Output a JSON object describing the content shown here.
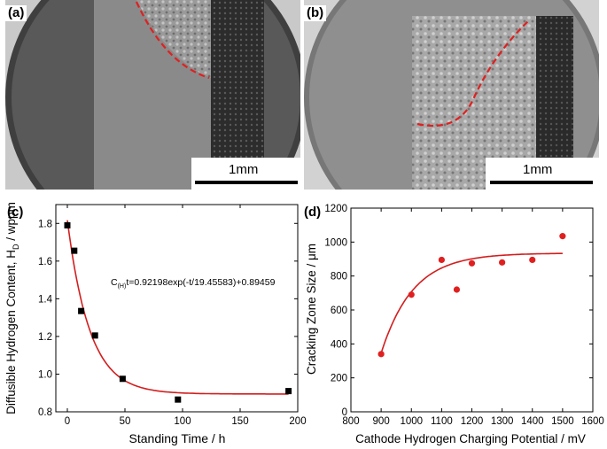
{
  "panels": {
    "a": {
      "label": "(a)",
      "scale_bar": "1mm"
    },
    "b": {
      "label": "(b)",
      "scale_bar": "1mm"
    }
  },
  "colors": {
    "fit_red": "#d21e1e",
    "boundary_red": "#e02020",
    "marker_black": "#000000"
  },
  "chart_data": [
    {
      "panel_label": "(c)",
      "type": "scatter",
      "xlabel": "Standing Time / h",
      "ylabel": "Diffusible Hydrogen Content, H",
      "ylabel_sub": "D",
      "ylabel_suffix": " / wppm",
      "xlim": [
        -10,
        200
      ],
      "ylim": [
        0.8,
        1.9
      ],
      "xticks": [
        "0",
        "50",
        "100",
        "150",
        "200"
      ],
      "yticks": [
        "0.8",
        "1.0",
        "1.2",
        "1.4",
        "1.6",
        "1.8"
      ],
      "series": [
        {
          "marker": "square",
          "points": [
            [
              0,
              1.79
            ],
            [
              6,
              1.655
            ],
            [
              12,
              1.335
            ],
            [
              24,
              1.205
            ],
            [
              48,
              0.975
            ],
            [
              96,
              0.865
            ],
            [
              192,
              0.91
            ]
          ]
        }
      ],
      "fit": {
        "type": "exp",
        "A": 0.92198,
        "tau": 19.45583,
        "C": 0.89459,
        "x_range": [
          0,
          192
        ]
      },
      "annotation": {
        "prefix": "C",
        "sub": "(H)",
        "text": "t=0.92198exp(-t/19.45583)+0.89459"
      }
    },
    {
      "panel_label": "(d)",
      "type": "scatter",
      "xlabel": "Cathode Hydrogen Charging Potential / mV",
      "ylabel": "Cracking Zone Size / μm",
      "xlim": [
        800,
        1600
      ],
      "ylim": [
        0,
        1200
      ],
      "xticks": [
        "800",
        "900",
        "1000",
        "1100",
        "1200",
        "1300",
        "1400",
        "1500",
        "1600"
      ],
      "yticks": [
        "0",
        "200",
        "400",
        "600",
        "800",
        "1000",
        "1200"
      ],
      "series": [
        {
          "marker": "circle",
          "points": [
            [
              900,
              340
            ],
            [
              1000,
              690
            ],
            [
              1100,
              895
            ],
            [
              1150,
              720
            ],
            [
              1200,
              875
            ],
            [
              1300,
              880
            ],
            [
              1400,
              895
            ],
            [
              1500,
              1035
            ]
          ]
        }
      ],
      "fit": {
        "type": "saturation",
        "x_range": [
          900,
          1500
        ]
      }
    }
  ]
}
